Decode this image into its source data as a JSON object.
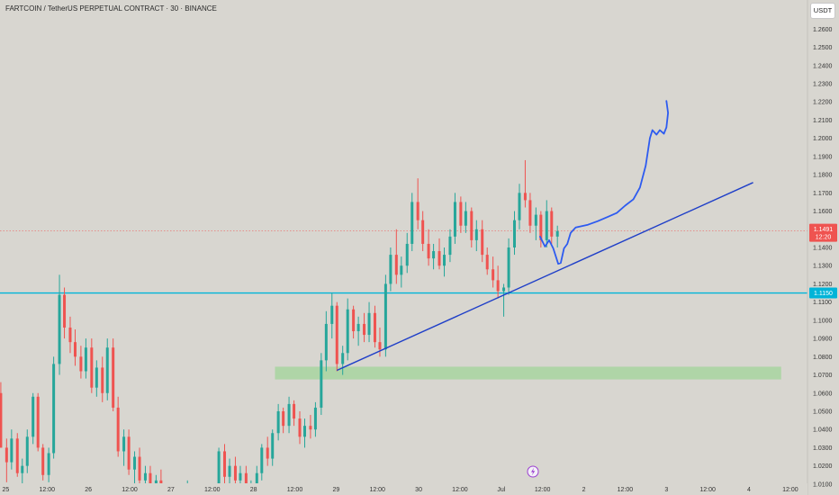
{
  "header": {
    "title": "FARTCOIN / TetherUS PERPETUAL CONTRACT · 30 · BINANCE",
    "currency": "USDT"
  },
  "colors": {
    "background": "#d8d6d0",
    "up": "#26a69a",
    "down": "#ef5350",
    "trendline": "#1f3fc8",
    "projection": "#2d5bf0",
    "support_line": "#00b4d8",
    "zone": "#a8d5a0",
    "price_line": "#ef5350"
  },
  "chart_data": {
    "type": "candlestick",
    "symbol": "FARTCOIN / TetherUS PERPETUAL CONTRACT",
    "interval": "30",
    "exchange": "BINANCE",
    "ylim": [
      1.004,
      1.276
    ],
    "y_ticks": [
      1.27,
      1.26,
      1.25,
      1.24,
      1.23,
      1.22,
      1.21,
      1.2,
      1.19,
      1.18,
      1.17,
      1.16,
      1.15,
      1.14,
      1.13,
      1.12,
      1.11,
      1.1,
      1.09,
      1.08,
      1.07,
      1.06,
      1.05,
      1.04,
      1.03,
      1.02,
      1.01
    ],
    "y_tick_labels": [
      "1.2700",
      "1.2600",
      "1.2500",
      "1.2400",
      "1.2300",
      "1.2200",
      "1.2100",
      "1.2000",
      "1.1900",
      "1.1800",
      "1.1700",
      "1.1600",
      "1.1500",
      "1.1400",
      "1.1300",
      "1.1200",
      "1.1100",
      "1.1000",
      "1.0900",
      "1.0800",
      "1.0700",
      "1.0600",
      "1.0500",
      "1.0400",
      "1.0300",
      "1.0200",
      "1.0100"
    ],
    "x_label_days": [
      25,
      25.5,
      26,
      26.5,
      27,
      27.5,
      28,
      28.5,
      29,
      29.5,
      30,
      30.5,
      31,
      31.5,
      32,
      32.5,
      33,
      33.5,
      34,
      34.5
    ],
    "x_labels": [
      "25",
      "12:00",
      "26",
      "12:00",
      "27",
      "12:00",
      "28",
      "12:00",
      "29",
      "12:00",
      "30",
      "12:00",
      "Jul",
      "12:00",
      "2",
      "12:00",
      "3",
      "12:00",
      "4",
      "12:00"
    ],
    "x_range_days": [
      24.93,
      35.09
    ],
    "current_price": {
      "value": 1.1491,
      "label": "1.1491",
      "countdown": "12:20"
    },
    "horizontal_line": {
      "value": 1.115,
      "label": "1.1150"
    },
    "zone": {
      "from_day": 28.26,
      "to_day": 34.39,
      "low": 1.0675,
      "high": 1.0745
    },
    "trendline": {
      "points": [
        [
          29.01,
          1.0725
        ],
        [
          34.05,
          1.1757
        ]
      ]
    },
    "projection_path": [
      [
        31.47,
        1.146
      ],
      [
        31.53,
        1.1405
      ],
      [
        31.58,
        1.144
      ],
      [
        31.63,
        1.1395
      ],
      [
        31.69,
        1.131
      ],
      [
        31.72,
        1.1315
      ],
      [
        31.76,
        1.1395
      ],
      [
        31.8,
        1.142
      ],
      [
        31.84,
        1.148
      ],
      [
        31.9,
        1.151
      ],
      [
        32.05,
        1.1525
      ],
      [
        32.17,
        1.1545
      ],
      [
        32.3,
        1.157
      ],
      [
        32.4,
        1.159
      ],
      [
        32.5,
        1.163
      ],
      [
        32.6,
        1.1665
      ],
      [
        32.68,
        1.173
      ],
      [
        32.75,
        1.185
      ],
      [
        32.8,
        1.2
      ],
      [
        32.83,
        1.2045
      ],
      [
        32.88,
        1.202
      ],
      [
        32.92,
        1.2045
      ],
      [
        32.97,
        1.2025
      ],
      [
        33.0,
        1.206
      ],
      [
        33.02,
        1.214
      ],
      [
        33.0,
        1.2205
      ]
    ],
    "candles": [
      [
        24.94,
        1.06,
        1.066,
        1.03,
        1.03
      ],
      [
        25.01,
        1.03,
        1.035,
        1.011,
        1.022
      ],
      [
        25.07,
        1.022,
        1.04,
        1.018,
        1.035
      ],
      [
        25.14,
        1.035,
        1.038,
        1.014,
        1.016
      ],
      [
        25.2,
        1.016,
        1.024,
        1.008,
        1.02
      ],
      [
        25.26,
        1.02,
        1.04,
        1.016,
        1.036
      ],
      [
        25.33,
        1.036,
        1.06,
        1.032,
        1.058
      ],
      [
        25.39,
        1.058,
        1.06,
        1.028,
        1.03
      ],
      [
        25.45,
        1.03,
        1.032,
        1.012,
        1.015
      ],
      [
        25.52,
        1.015,
        1.03,
        1.011,
        1.027
      ],
      [
        25.58,
        1.027,
        1.08,
        1.024,
        1.076
      ],
      [
        25.65,
        1.076,
        1.125,
        1.07,
        1.114
      ],
      [
        25.71,
        1.114,
        1.118,
        1.09,
        1.096
      ],
      [
        25.78,
        1.096,
        1.102,
        1.082,
        1.088
      ],
      [
        25.84,
        1.088,
        1.095,
        1.075,
        1.08
      ],
      [
        25.91,
        1.08,
        1.086,
        1.068,
        1.072
      ],
      [
        25.97,
        1.072,
        1.09,
        1.068,
        1.085
      ],
      [
        26.04,
        1.085,
        1.09,
        1.06,
        1.063
      ],
      [
        26.1,
        1.063,
        1.078,
        1.058,
        1.074
      ],
      [
        26.17,
        1.074,
        1.08,
        1.055,
        1.06
      ],
      [
        26.23,
        1.06,
        1.09,
        1.056,
        1.085
      ],
      [
        26.3,
        1.085,
        1.09,
        1.05,
        1.052
      ],
      [
        26.36,
        1.052,
        1.058,
        1.025,
        1.028
      ],
      [
        26.43,
        1.028,
        1.04,
        1.02,
        1.036
      ],
      [
        26.49,
        1.036,
        1.04,
        1.015,
        1.018
      ],
      [
        26.56,
        1.018,
        1.028,
        1.01,
        1.025
      ],
      [
        26.62,
        1.025,
        1.03,
        1.008,
        1.012
      ],
      [
        26.69,
        1.012,
        1.02,
        1.005,
        1.016
      ],
      [
        26.75,
        1.016,
        1.02,
        1.006,
        1.008
      ],
      [
        26.82,
        1.008,
        1.015,
        1.004,
        1.012
      ],
      [
        26.88,
        1.012,
        1.018,
        1.006,
        1.01
      ],
      [
        27.2,
        1.008,
        1.012,
        1.004,
        1.01
      ],
      [
        27.52,
        1.005,
        1.01,
        1.004,
        1.008
      ],
      [
        27.58,
        1.006,
        1.03,
        1.004,
        1.028
      ],
      [
        27.65,
        1.028,
        1.032,
        1.01,
        1.014
      ],
      [
        27.71,
        1.014,
        1.024,
        1.008,
        1.02
      ],
      [
        27.78,
        1.02,
        1.025,
        1.008,
        1.012
      ],
      [
        27.84,
        1.012,
        1.02,
        1.006,
        1.016
      ],
      [
        27.91,
        1.016,
        1.02,
        1.004,
        1.008
      ],
      [
        27.97,
        1.008,
        1.012,
        1.004,
        1.01
      ],
      [
        28.04,
        1.01,
        1.02,
        1.006,
        1.016
      ],
      [
        28.1,
        1.016,
        1.032,
        1.012,
        1.03
      ],
      [
        28.17,
        1.03,
        1.036,
        1.02,
        1.024
      ],
      [
        28.23,
        1.024,
        1.04,
        1.02,
        1.038
      ],
      [
        28.3,
        1.038,
        1.054,
        1.034,
        1.05
      ],
      [
        28.36,
        1.05,
        1.052,
        1.038,
        1.042
      ],
      [
        28.43,
        1.042,
        1.058,
        1.038,
        1.054
      ],
      [
        28.49,
        1.054,
        1.056,
        1.042,
        1.046
      ],
      [
        28.56,
        1.046,
        1.05,
        1.032,
        1.036
      ],
      [
        28.62,
        1.036,
        1.046,
        1.03,
        1.042
      ],
      [
        28.69,
        1.042,
        1.048,
        1.035,
        1.04
      ],
      [
        28.75,
        1.04,
        1.055,
        1.036,
        1.052
      ],
      [
        28.82,
        1.052,
        1.082,
        1.048,
        1.078
      ],
      [
        28.88,
        1.078,
        1.105,
        1.072,
        1.098
      ],
      [
        28.95,
        1.098,
        1.115,
        1.09,
        1.108
      ],
      [
        29.01,
        1.108,
        1.11,
        1.072,
        1.076
      ],
      [
        29.08,
        1.076,
        1.086,
        1.07,
        1.082
      ],
      [
        29.14,
        1.082,
        1.112,
        1.078,
        1.106
      ],
      [
        29.21,
        1.106,
        1.108,
        1.09,
        1.094
      ],
      [
        29.27,
        1.094,
        1.102,
        1.086,
        1.098
      ],
      [
        29.34,
        1.098,
        1.104,
        1.088,
        1.092
      ],
      [
        29.4,
        1.092,
        1.11,
        1.088,
        1.104
      ],
      [
        29.47,
        1.104,
        1.108,
        1.085,
        1.088
      ],
      [
        29.53,
        1.088,
        1.096,
        1.08,
        1.084
      ],
      [
        29.6,
        1.084,
        1.125,
        1.08,
        1.12
      ],
      [
        29.66,
        1.12,
        1.14,
        1.116,
        1.136
      ],
      [
        29.73,
        1.136,
        1.15,
        1.12,
        1.125
      ],
      [
        29.79,
        1.125,
        1.135,
        1.118,
        1.13
      ],
      [
        29.86,
        1.13,
        1.148,
        1.126,
        1.142
      ],
      [
        29.92,
        1.142,
        1.17,
        1.138,
        1.165
      ],
      [
        29.99,
        1.165,
        1.178,
        1.15,
        1.155
      ],
      [
        30.05,
        1.155,
        1.16,
        1.138,
        1.142
      ],
      [
        30.12,
        1.142,
        1.15,
        1.13,
        1.134
      ],
      [
        30.18,
        1.134,
        1.142,
        1.128,
        1.138
      ],
      [
        30.25,
        1.138,
        1.145,
        1.128,
        1.13
      ],
      [
        30.31,
        1.13,
        1.14,
        1.124,
        1.136
      ],
      [
        30.38,
        1.136,
        1.15,
        1.132,
        1.146
      ],
      [
        30.44,
        1.146,
        1.17,
        1.142,
        1.165
      ],
      [
        30.51,
        1.165,
        1.168,
        1.148,
        1.152
      ],
      [
        30.57,
        1.152,
        1.165,
        1.148,
        1.16
      ],
      [
        30.64,
        1.16,
        1.162,
        1.14,
        1.144
      ],
      [
        30.7,
        1.144,
        1.155,
        1.138,
        1.15
      ],
      [
        30.77,
        1.15,
        1.155,
        1.132,
        1.136
      ],
      [
        30.83,
        1.136,
        1.14,
        1.125,
        1.128
      ],
      [
        30.9,
        1.128,
        1.135,
        1.118,
        1.122
      ],
      [
        30.96,
        1.122,
        1.13,
        1.112,
        1.116
      ],
      [
        31.03,
        1.116,
        1.12,
        1.102,
        1.118
      ],
      [
        31.09,
        1.118,
        1.145,
        1.114,
        1.14
      ],
      [
        31.16,
        1.14,
        1.16,
        1.136,
        1.155
      ],
      [
        31.22,
        1.155,
        1.175,
        1.15,
        1.17
      ],
      [
        31.29,
        1.17,
        1.188,
        1.162,
        1.166
      ],
      [
        31.35,
        1.166,
        1.17,
        1.148,
        1.152
      ],
      [
        31.42,
        1.152,
        1.162,
        1.144,
        1.158
      ],
      [
        31.48,
        1.158,
        1.16,
        1.14,
        1.144
      ],
      [
        31.55,
        1.144,
        1.166,
        1.14,
        1.16
      ],
      [
        31.61,
        1.16,
        1.162,
        1.142,
        1.146
      ],
      [
        31.68,
        1.146,
        1.152,
        1.14,
        1.149
      ]
    ]
  }
}
